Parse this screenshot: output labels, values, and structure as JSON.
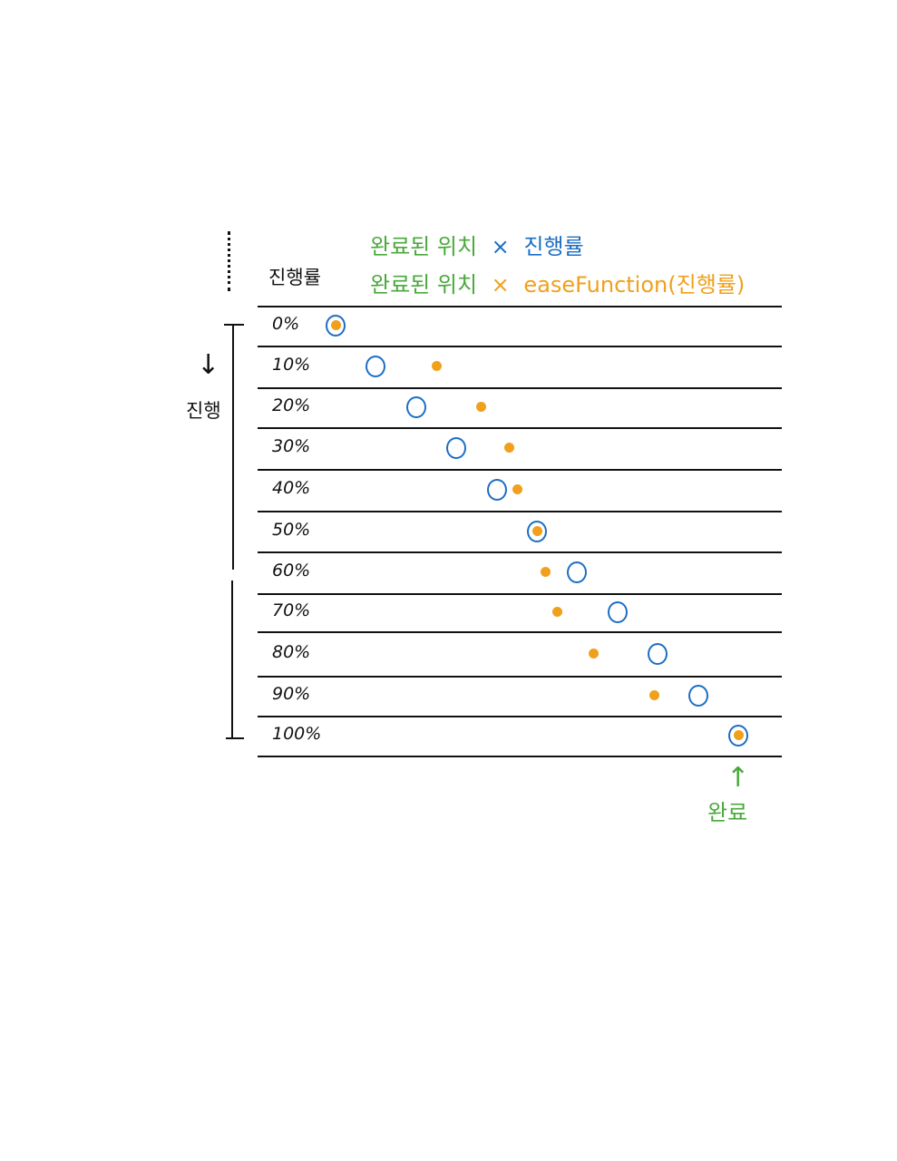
{
  "header": {
    "column_label": "진행률"
  },
  "legend": {
    "linear": {
      "left": "완료된 위치",
      "op": "×",
      "right": "진행률"
    },
    "eased": {
      "left": "완료된 위치",
      "op": "×",
      "right": "easeFunction(진행률)"
    }
  },
  "side": {
    "label": "진행",
    "arrow": "↓"
  },
  "end": {
    "label": "완료",
    "arrow": "↑"
  },
  "colors": {
    "green": "#4aa83c",
    "blue": "#1c6ec4",
    "orange": "#f0a01c",
    "ink": "#111111"
  },
  "rows": [
    {
      "label": "0%",
      "progress": 0,
      "eased": 0
    },
    {
      "label": "10%",
      "progress": 0.1,
      "eased": 0.25
    },
    {
      "label": "20%",
      "progress": 0.2,
      "eased": 0.36
    },
    {
      "label": "30%",
      "progress": 0.3,
      "eased": 0.43
    },
    {
      "label": "40%",
      "progress": 0.4,
      "eased": 0.45
    },
    {
      "label": "50%",
      "progress": 0.5,
      "eased": 0.5
    },
    {
      "label": "60%",
      "progress": 0.6,
      "eased": 0.52
    },
    {
      "label": "70%",
      "progress": 0.7,
      "eased": 0.55
    },
    {
      "label": "80%",
      "progress": 0.8,
      "eased": 0.64
    },
    {
      "label": "90%",
      "progress": 0.9,
      "eased": 0.79
    },
    {
      "label": "100%",
      "progress": 1,
      "eased": 1
    }
  ]
}
